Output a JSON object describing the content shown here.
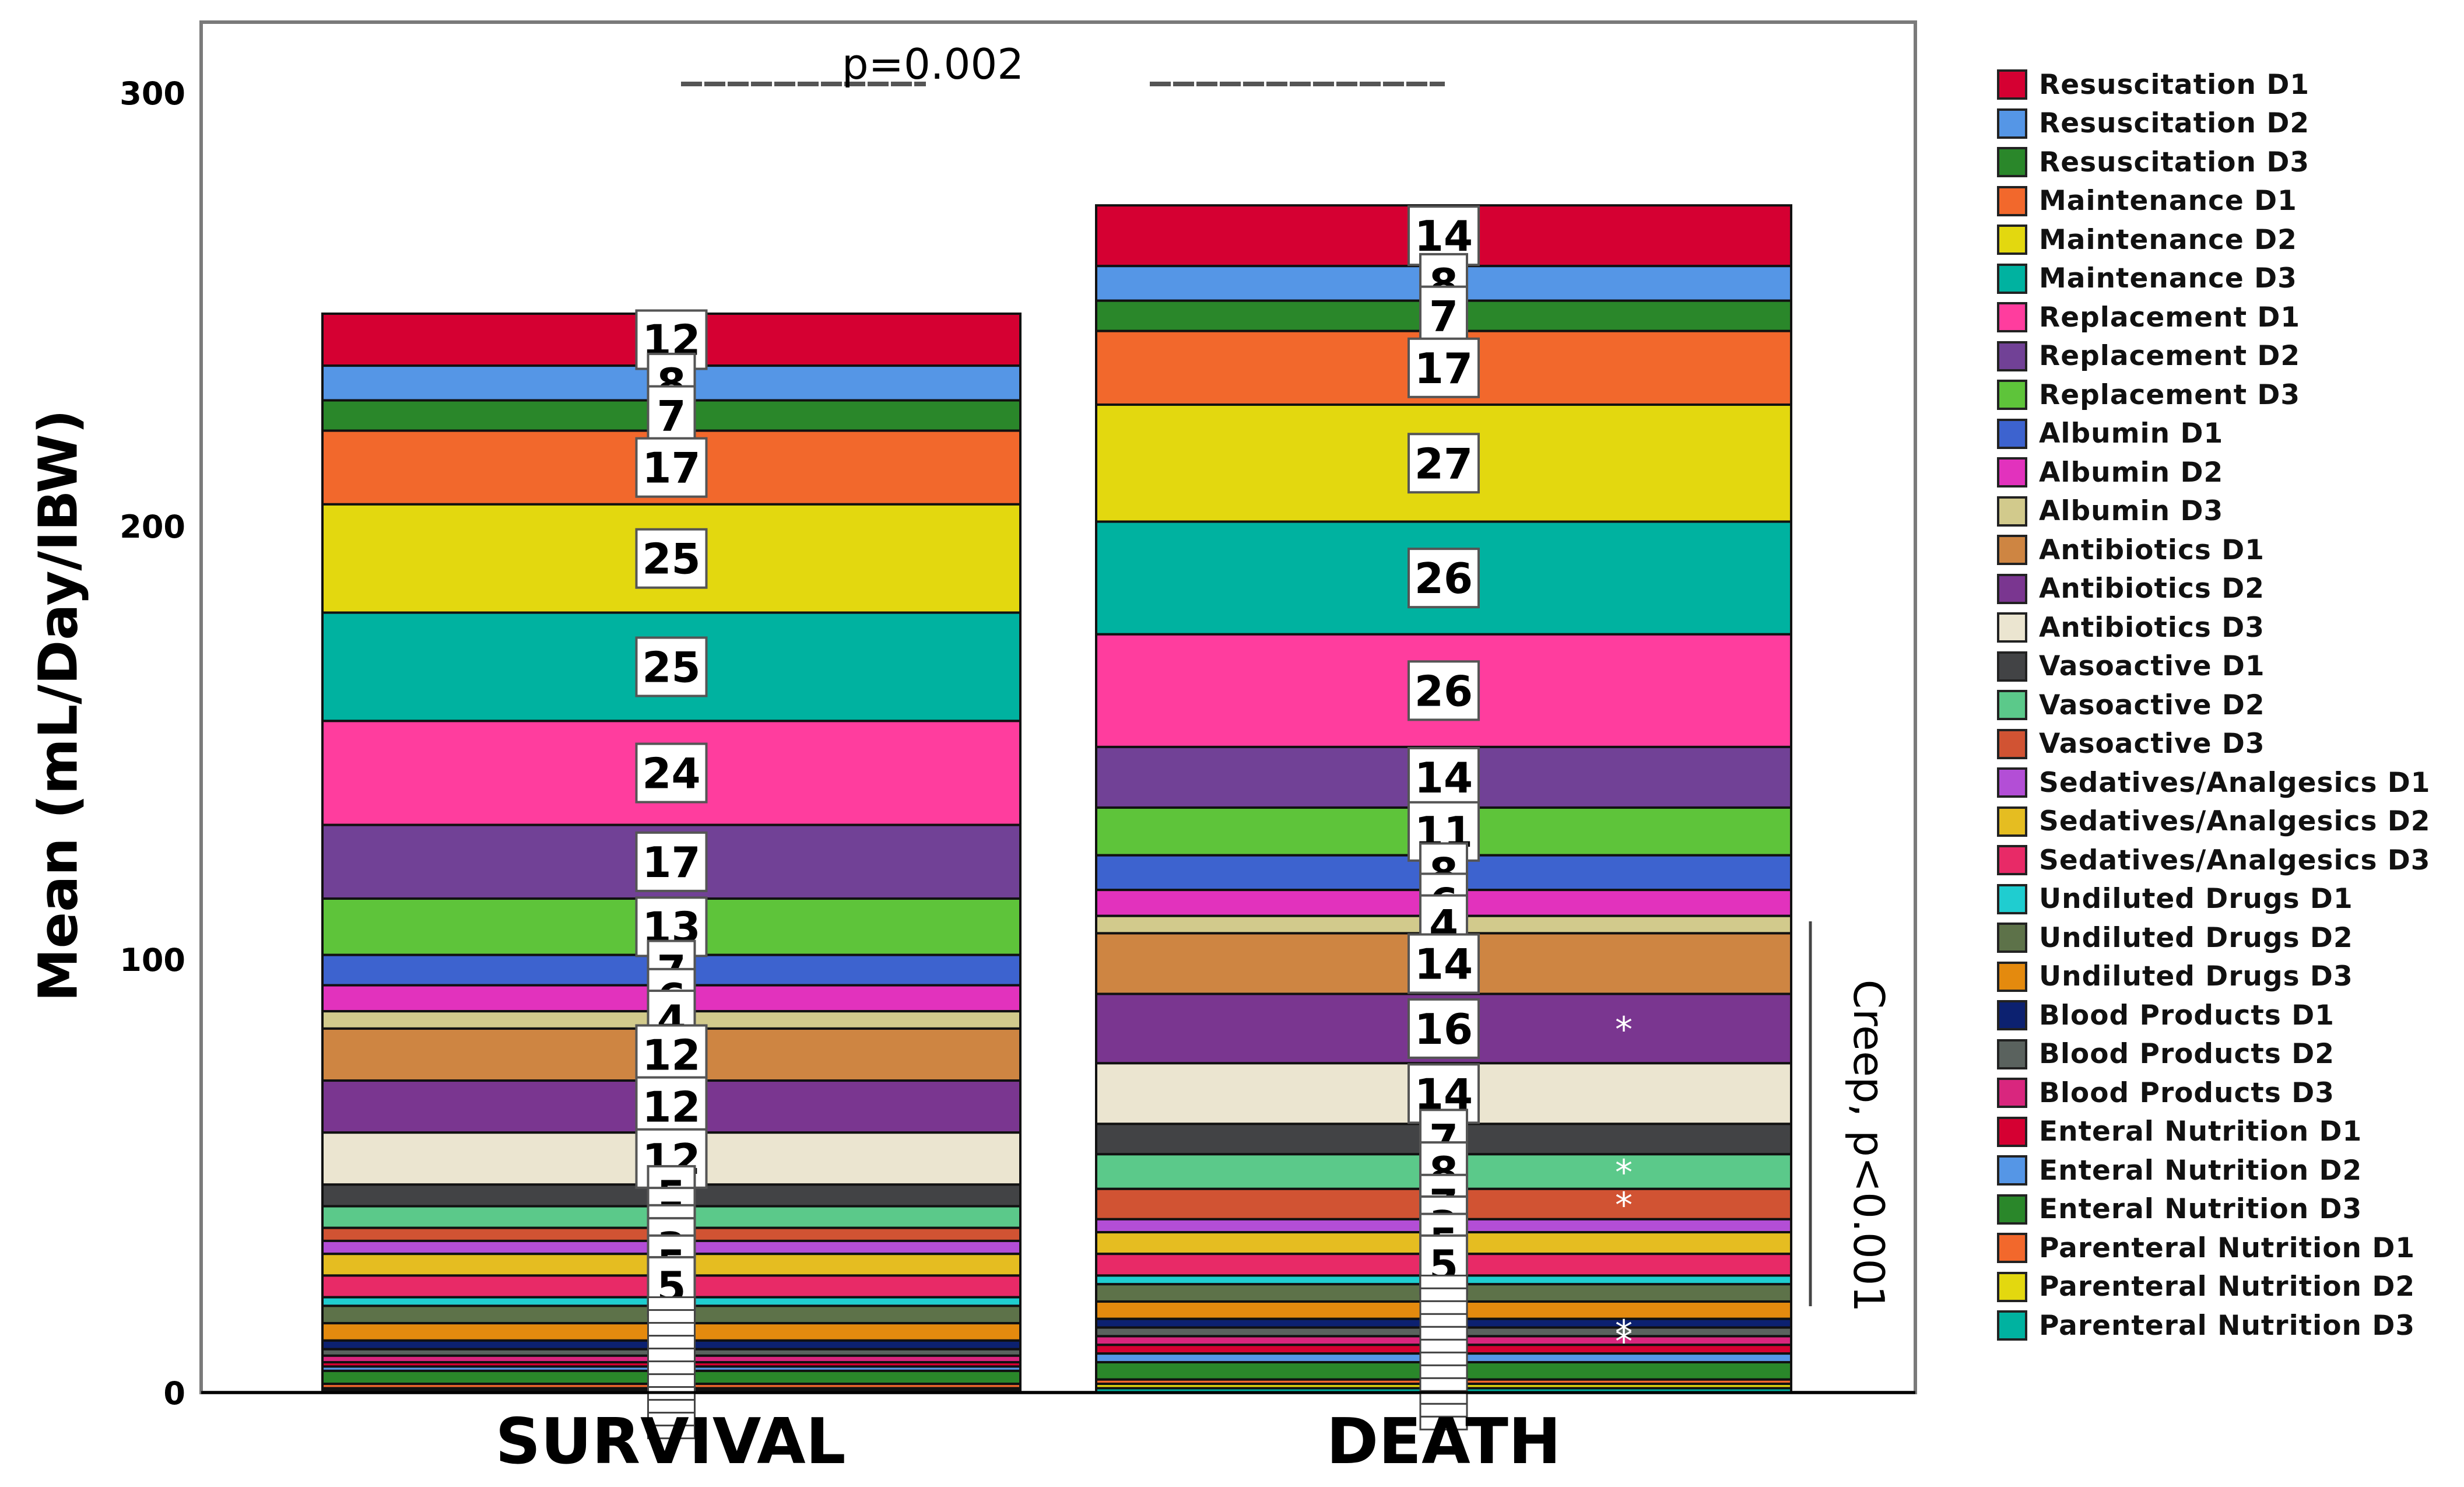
{
  "chart_data": {
    "type": "bar",
    "stacked": true,
    "title": "",
    "xlabel": "",
    "ylabel": "Mean (mL/Day/IBW)",
    "ylim": [
      0,
      300
    ],
    "yticks": [
      0,
      100,
      200,
      300
    ],
    "categories": [
      "SURVIVAL",
      "DEATH"
    ],
    "annotations": {
      "top": "p=0.002",
      "right": "Creep, p<0.001",
      "stars_death": [
        "Antibiotics D2",
        "Vasoactive D2",
        "Vasoactive D3",
        "Blood Products D2",
        "Blood Products D3"
      ]
    },
    "legend_position": "right",
    "series": [
      {
        "name": "Resuscitation D1",
        "color": "#d50032",
        "values": [
          12,
          14
        ]
      },
      {
        "name": "Resuscitation D2",
        "color": "#5596e6",
        "values": [
          8,
          8
        ]
      },
      {
        "name": "Resuscitation D3",
        "color": "#2a872a",
        "values": [
          7,
          7
        ]
      },
      {
        "name": "Maintenance D1",
        "color": "#f2682c",
        "values": [
          17,
          17
        ]
      },
      {
        "name": "Maintenance D2",
        "color": "#e3d80f",
        "values": [
          25,
          27
        ]
      },
      {
        "name": "Maintenance D3",
        "color": "#00b2a0",
        "values": [
          25,
          26
        ]
      },
      {
        "name": "Replacement D1",
        "color": "#ff3d9e",
        "values": [
          24,
          26
        ]
      },
      {
        "name": "Replacement D2",
        "color": "#714196",
        "values": [
          17,
          14
        ]
      },
      {
        "name": "Replacement D3",
        "color": "#5ec43a",
        "values": [
          13,
          11
        ]
      },
      {
        "name": "Albumin D1",
        "color": "#3d63cf",
        "values": [
          7,
          8
        ]
      },
      {
        "name": "Albumin D2",
        "color": "#e232bd",
        "values": [
          6,
          6
        ]
      },
      {
        "name": "Albumin D3",
        "color": "#d2ca8c",
        "values": [
          4,
          4
        ]
      },
      {
        "name": "Antibiotics D1",
        "color": "#ce8542",
        "values": [
          12,
          14
        ]
      },
      {
        "name": "Antibiotics D2",
        "color": "#7a3690",
        "values": [
          12,
          16
        ]
      },
      {
        "name": "Antibiotics D3",
        "color": "#ebe5d0",
        "values": [
          12,
          14
        ]
      },
      {
        "name": "Vasoactive D1",
        "color": "#424345",
        "values": [
          5,
          7
        ]
      },
      {
        "name": "Vasoactive D2",
        "color": "#5bc98a",
        "values": [
          5,
          8
        ]
      },
      {
        "name": "Vasoactive D3",
        "color": "#d15333",
        "values": [
          3,
          7
        ]
      },
      {
        "name": "Sedatives/Analgesics D1",
        "color": "#b34ed6",
        "values": [
          3,
          3
        ]
      },
      {
        "name": "Sedatives/Analgesics D2",
        "color": "#e5bd21",
        "values": [
          5,
          5
        ]
      },
      {
        "name": "Sedatives/Analgesics D3",
        "color": "#e82a67",
        "values": [
          5,
          5
        ]
      },
      {
        "name": "Undiluted Drugs D1",
        "color": "#1fcdd0",
        "values": [
          2,
          2
        ]
      },
      {
        "name": "Undiluted Drugs D2",
        "color": "#5d7249",
        "values": [
          4,
          4
        ]
      },
      {
        "name": "Undiluted Drugs D3",
        "color": "#e48a0e",
        "values": [
          4,
          4
        ]
      },
      {
        "name": "Blood Products D1",
        "color": "#0c2170",
        "values": [
          2,
          2
        ]
      },
      {
        "name": "Blood Products D2",
        "color": "#5a625e",
        "values": [
          1.5,
          2
        ]
      },
      {
        "name": "Blood Products D3",
        "color": "#d9267e",
        "values": [
          1.5,
          2
        ]
      },
      {
        "name": "Enteral Nutrition D1",
        "color": "#d50032",
        "values": [
          1,
          2
        ]
      },
      {
        "name": "Enteral Nutrition D2",
        "color": "#5596e6",
        "values": [
          1,
          2
        ]
      },
      {
        "name": "Enteral Nutrition D3",
        "color": "#2a872a",
        "values": [
          3,
          4
        ]
      },
      {
        "name": "Parenteral Nutrition D1",
        "color": "#f2682c",
        "values": [
          1,
          1
        ]
      },
      {
        "name": "Parenteral Nutrition D2",
        "color": "#e3d80f",
        "values": [
          0.5,
          1
        ]
      },
      {
        "name": "Parenteral Nutrition D3",
        "color": "#00b2a0",
        "values": [
          0.5,
          1
        ]
      }
    ],
    "segment_labels": {
      "SURVIVAL": [
        12,
        8,
        7,
        17,
        25,
        25,
        24,
        17,
        13,
        7,
        6,
        4,
        12,
        12,
        12,
        5,
        5,
        3,
        3,
        5,
        5
      ],
      "DEATH": [
        14,
        8,
        7,
        17,
        27,
        26,
        26,
        14,
        11,
        8,
        6,
        4,
        14,
        16,
        14,
        7,
        8,
        7,
        3,
        5,
        5
      ]
    }
  },
  "axis": {
    "y_title": "Mean (mL/Day/IBW)",
    "y_ticks": [
      "0",
      "100",
      "200",
      "300"
    ],
    "x_labels": [
      "SURVIVAL",
      "DEATH"
    ]
  },
  "annotations": {
    "p_top": "p=0.002",
    "creep": "Creep, p<0.001"
  }
}
